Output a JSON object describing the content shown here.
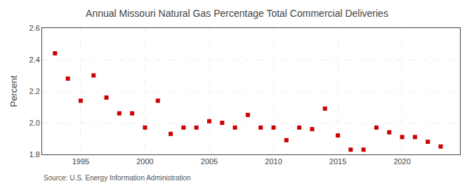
{
  "chart_data": {
    "type": "scatter",
    "title": "Annual Missouri Natural Gas Percentage Total Commercial Deliveries",
    "ylabel": "Percent",
    "annotations": [
      "Source: U.S. Energy Information Administration"
    ],
    "x": [
      1993,
      1994,
      1995,
      1996,
      1997,
      1998,
      1999,
      2000,
      2001,
      2002,
      2003,
      2004,
      2005,
      2006,
      2007,
      2008,
      2009,
      2010,
      2011,
      2012,
      2013,
      2014,
      2015,
      2016,
      2017,
      2018,
      2019,
      2020,
      2021,
      2022,
      2023
    ],
    "values": [
      2.44,
      2.28,
      2.14,
      2.3,
      2.16,
      2.06,
      2.06,
      1.97,
      2.14,
      1.93,
      1.97,
      1.97,
      2.01,
      2.0,
      1.97,
      2.05,
      1.97,
      1.97,
      1.89,
      1.97,
      1.96,
      2.09,
      1.92,
      1.83,
      1.83,
      1.97,
      1.94,
      1.91,
      1.91,
      1.88,
      1.85
    ],
    "color": "#cc0000",
    "marker": "square",
    "xlim": [
      1992,
      2024.5
    ],
    "xticks": [
      1995,
      2000,
      2005,
      2010,
      2015,
      2020
    ],
    "ylim": [
      1.8,
      2.6
    ],
    "yticks": [
      1.8,
      {
        "value": 2.0,
        "label": "2.0"
      },
      2.2,
      2.4,
      2.6
    ],
    "grid": true
  }
}
